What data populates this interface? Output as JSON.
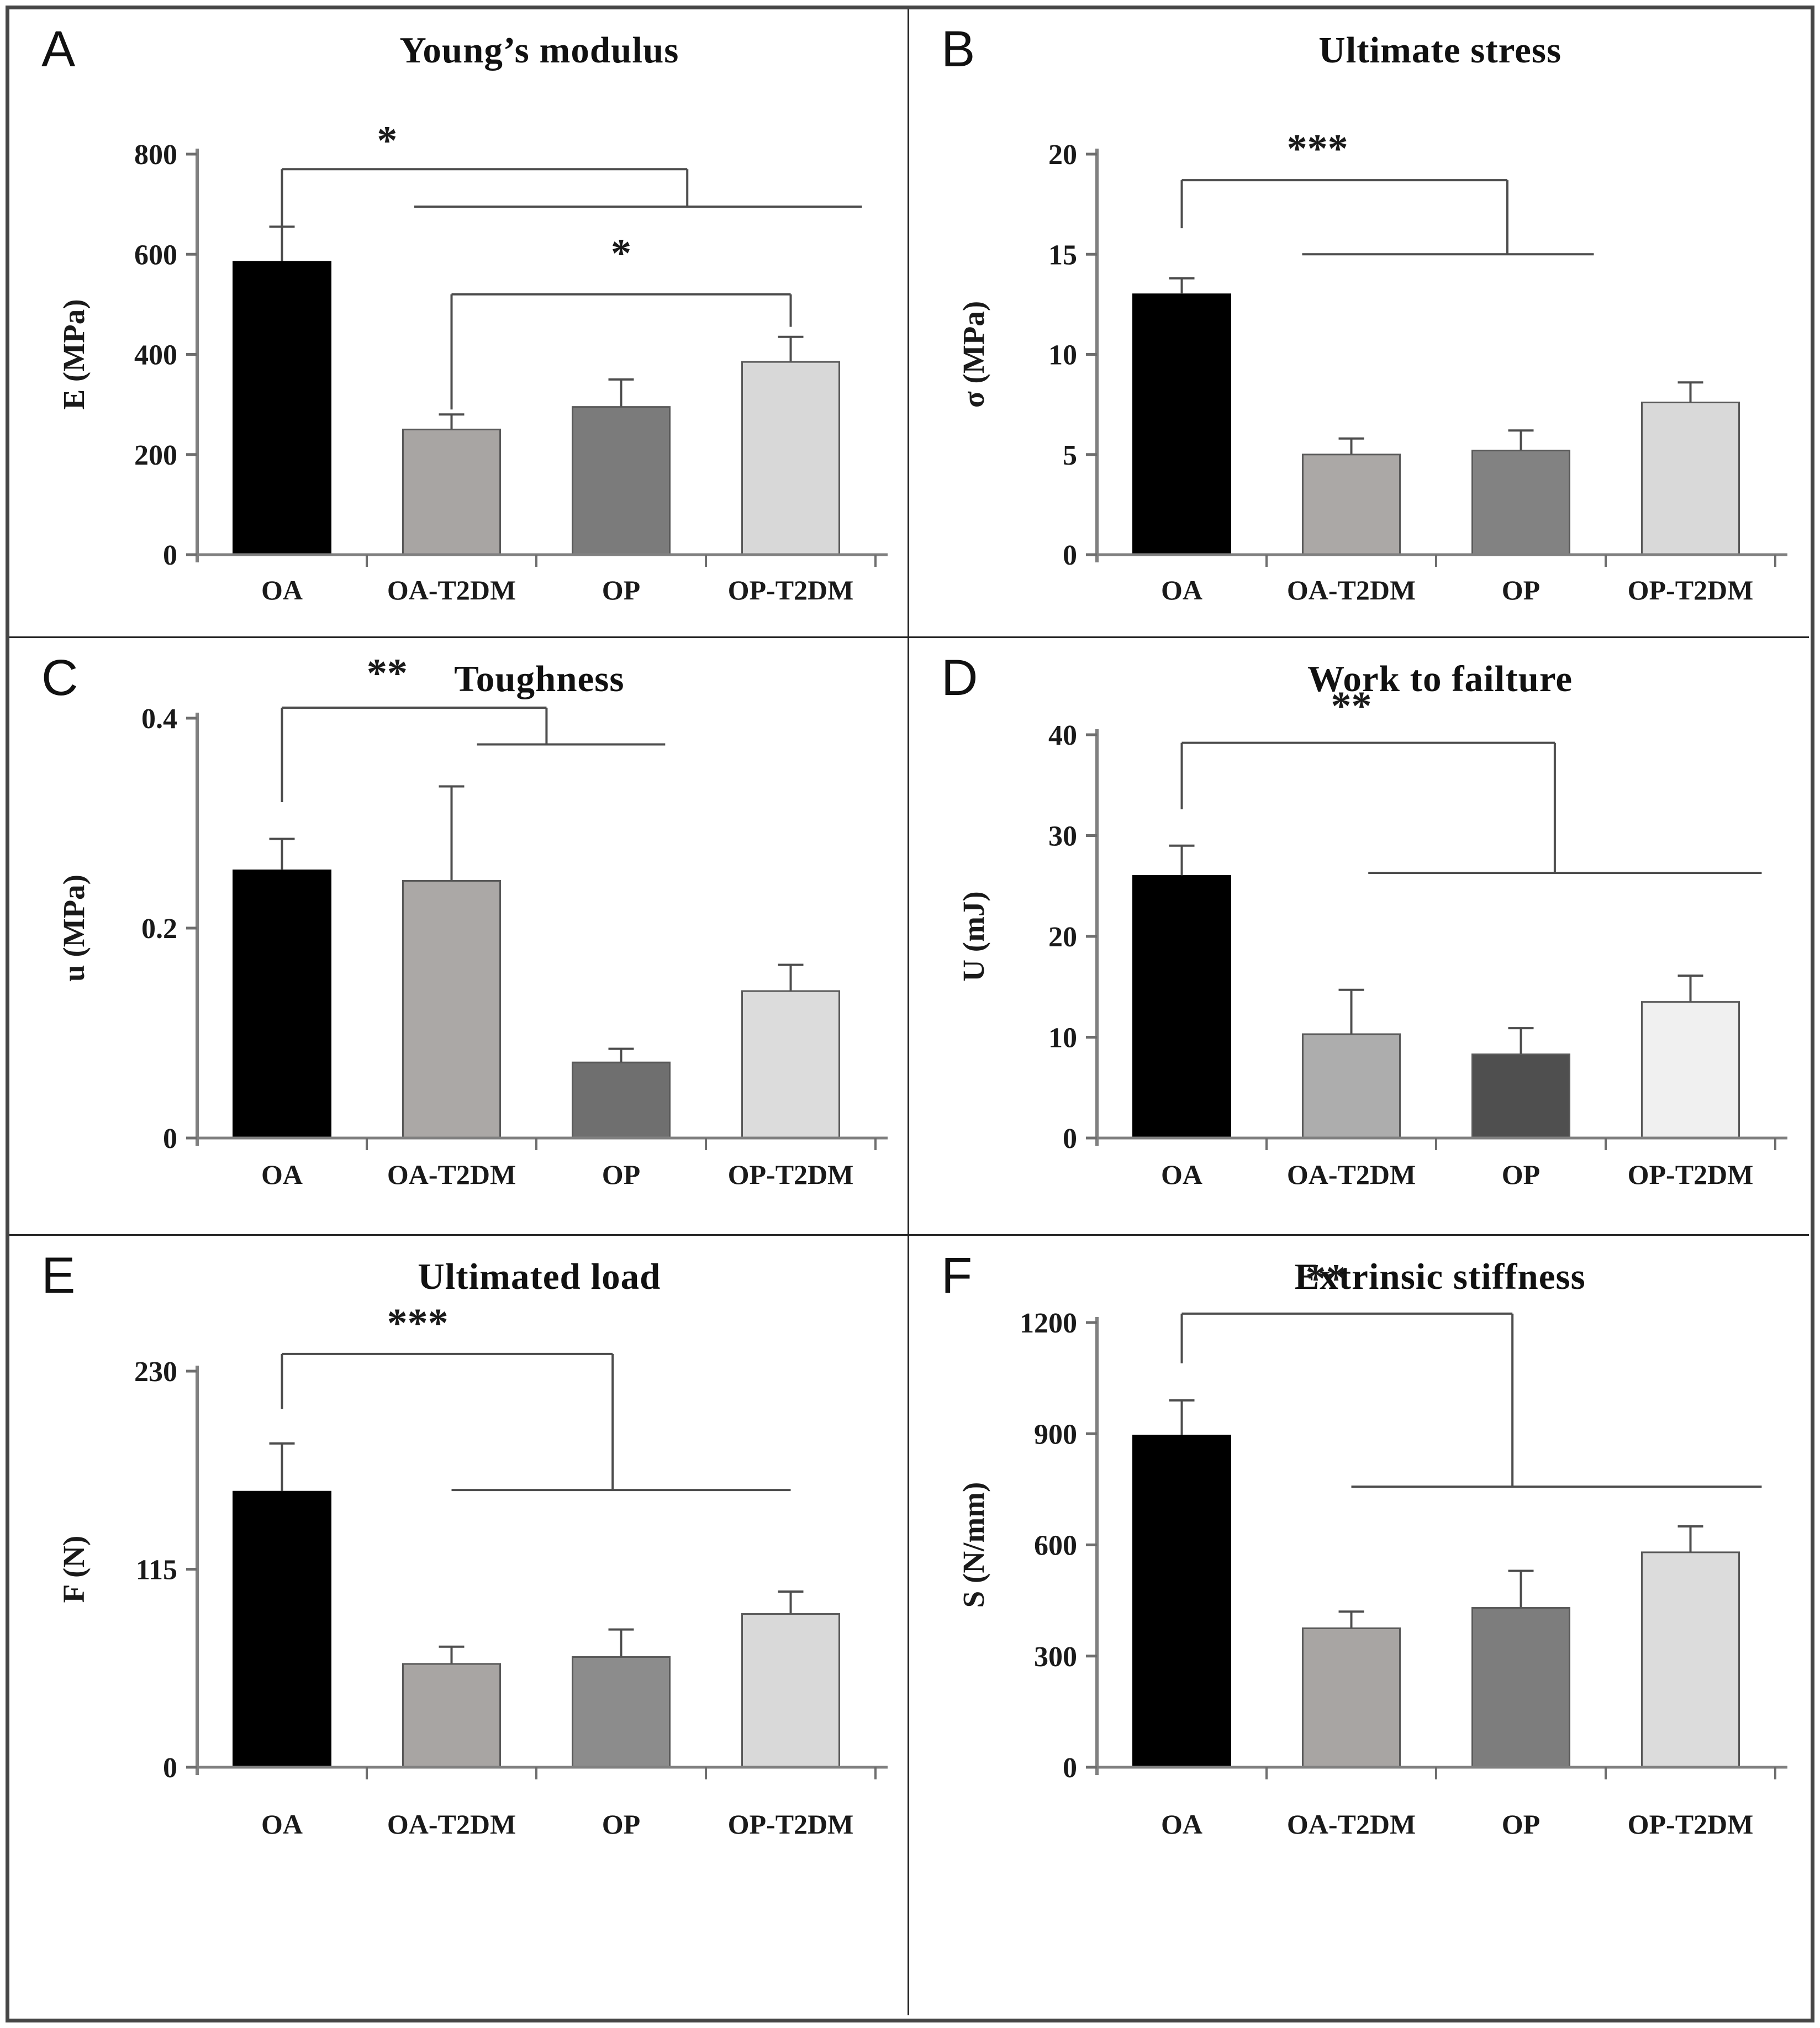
{
  "figure": {
    "border_color": "#464646",
    "divider_color": "#262626",
    "axis_color": "#808080",
    "line_color": "#4d4d4d",
    "text_color": "#1a1a1a"
  },
  "chart_data": [
    {
      "type": "bar",
      "letter": "A",
      "title": "Young’s modulus",
      "ylabel": "E (MPa)",
      "ylim": [
        0,
        800
      ],
      "yticks": [
        0,
        200,
        400,
        600,
        800
      ],
      "ytick_labels": [
        "0",
        "200",
        "400",
        "600",
        "800"
      ],
      "categories": [
        "OA",
        "OA-T2DM",
        "OP",
        "OP-T2DM"
      ],
      "values": [
        585,
        250,
        295,
        385
      ],
      "errors": [
        70,
        30,
        55,
        50
      ],
      "bar_colors": [
        "#000000",
        "#a8a5a3",
        "#7b7b7b",
        "#d8d8d8"
      ],
      "legend": "none",
      "grid": "off",
      "significance": [
        {
          "label": "*",
          "label_u": 0.62,
          "label_v": 800,
          "segments": [
            {
              "u1": 0,
              "v1": 640,
              "u2": 0,
              "v2": 770
            },
            {
              "u1": 0,
              "v1": 770,
              "u2": 2.39,
              "v2": 770
            },
            {
              "u1": 2.39,
              "v1": 695,
              "u2": 2.39,
              "v2": 770
            },
            {
              "u1": 0.78,
              "v1": 695,
              "u2": 3.42,
              "v2": 695
            }
          ]
        },
        {
          "label": "*",
          "label_u": 2.0,
          "label_v": 575,
          "segments": [
            {
              "u1": 1,
              "v1": 290,
              "u2": 1,
              "v2": 520
            },
            {
              "u1": 1,
              "v1": 520,
              "u2": 3,
              "v2": 520
            },
            {
              "u1": 3,
              "v1": 455,
              "u2": 3,
              "v2": 520
            }
          ]
        }
      ]
    },
    {
      "type": "bar",
      "letter": "B",
      "title": "Ultimate stress",
      "ylabel": "σ (MPa)",
      "ylim": [
        0,
        20
      ],
      "yticks": [
        0,
        5,
        10,
        15,
        20
      ],
      "ytick_labels": [
        "0",
        "5",
        "10",
        "15",
        "20"
      ],
      "categories": [
        "OA",
        "OA-T2DM",
        "OP",
        "OP-T2DM"
      ],
      "values": [
        13,
        5,
        5.2,
        7.6
      ],
      "errors": [
        0.8,
        0.8,
        1.0,
        1.0
      ],
      "bar_colors": [
        "#000000",
        "#aba8a6",
        "#828282",
        "#d9d9d9"
      ],
      "legend": "none",
      "grid": "off",
      "significance": [
        {
          "label": "***",
          "label_u": 0.8,
          "label_v": 19.6,
          "segments": [
            {
              "u1": 0,
              "v1": 16.3,
              "u2": 0,
              "v2": 18.7
            },
            {
              "u1": 0,
              "v1": 18.7,
              "u2": 1.92,
              "v2": 18.7
            },
            {
              "u1": 1.92,
              "v1": 15,
              "u2": 1.92,
              "v2": 18.7
            },
            {
              "u1": 0.71,
              "v1": 15,
              "u2": 2.43,
              "v2": 15
            }
          ]
        }
      ]
    },
    {
      "type": "bar",
      "letter": "C",
      "title": "Toughness",
      "ylabel": "u (MPa)",
      "ylim": [
        0,
        0.4
      ],
      "yticks": [
        0,
        0.2,
        0.4
      ],
      "ytick_labels": [
        "0",
        "0.2",
        "0.4"
      ],
      "categories": [
        "OA",
        "OA-T2DM",
        "OP",
        "OP-T2DM"
      ],
      "values": [
        0.255,
        0.245,
        0.072,
        0.14
      ],
      "errors": [
        0.03,
        0.09,
        0.013,
        0.025
      ],
      "bar_colors": [
        "#000000",
        "#aba8a6",
        "#6f6f6f",
        "#dcdcdc"
      ],
      "legend": "none",
      "grid": "off",
      "significance": [
        {
          "label": "**",
          "label_u": 0.62,
          "label_v": 0.43,
          "segments": [
            {
              "u1": 0,
              "v1": 0.32,
              "u2": 0,
              "v2": 0.41
            },
            {
              "u1": 0,
              "v1": 0.41,
              "u2": 1.56,
              "v2": 0.41
            },
            {
              "u1": 1.56,
              "v1": 0.375,
              "u2": 1.56,
              "v2": 0.41
            },
            {
              "u1": 1.15,
              "v1": 0.375,
              "u2": 2.26,
              "v2": 0.375
            }
          ]
        }
      ]
    },
    {
      "type": "bar",
      "letter": "D",
      "title": "Work to failture",
      "ylabel": "U (mJ)",
      "ylim": [
        0,
        40
      ],
      "yticks": [
        0,
        10,
        20,
        30,
        40
      ],
      "ytick_labels": [
        "0",
        "10",
        "20",
        "30",
        "40"
      ],
      "categories": [
        "OA",
        "OA-T2DM",
        "OP",
        "OP-T2DM"
      ],
      "values": [
        26,
        10.3,
        8.3,
        13.5
      ],
      "errors": [
        3,
        4.4,
        2.6,
        2.6
      ],
      "bar_colors": [
        "#000000",
        "#adadad",
        "#4f4f4f",
        "#f0f0f0"
      ],
      "legend": "none",
      "grid": "off",
      "significance": [
        {
          "label": "**",
          "label_u": 1.0,
          "label_v": 41.5,
          "segments": [
            {
              "u1": 0,
              "v1": 32.6,
              "u2": 0,
              "v2": 39.2
            },
            {
              "u1": 0,
              "v1": 39.2,
              "u2": 2.2,
              "v2": 39.2
            },
            {
              "u1": 2.2,
              "v1": 26.3,
              "u2": 2.2,
              "v2": 39.2
            },
            {
              "u1": 1.1,
              "v1": 26.3,
              "u2": 3.42,
              "v2": 26.3
            }
          ]
        }
      ]
    },
    {
      "type": "bar",
      "letter": "E",
      "title": "Ultimated load",
      "ylabel": "F (N)",
      "ylim": [
        0,
        230
      ],
      "yticks": [
        0,
        115,
        230
      ],
      "ytick_labels": [
        "0",
        "115",
        "230"
      ],
      "categories": [
        "OA",
        "OA-T2DM",
        "OP",
        "OP-T2DM"
      ],
      "values": [
        160,
        60,
        64,
        89
      ],
      "errors": [
        28,
        10,
        16,
        13
      ],
      "bar_colors": [
        "#000000",
        "#a8a5a3",
        "#8c8c8c",
        "#d9d9d9"
      ],
      "legend": "none",
      "grid": "off",
      "significance": [
        {
          "label": "***",
          "label_u": 0.8,
          "label_v": 250,
          "segments": [
            {
              "u1": 0,
              "v1": 208,
              "u2": 0,
              "v2": 240
            },
            {
              "u1": 0,
              "v1": 240,
              "u2": 1.95,
              "v2": 240
            },
            {
              "u1": 1.95,
              "v1": 161,
              "u2": 1.95,
              "v2": 240
            },
            {
              "u1": 1,
              "v1": 161,
              "u2": 3,
              "v2": 161
            }
          ]
        }
      ]
    },
    {
      "type": "bar",
      "letter": "F",
      "title": "Extrinsic stiffness",
      "ylabel": "S (N/mm)",
      "ylim": [
        0,
        1200
      ],
      "yticks": [
        0,
        300,
        600,
        900,
        1200
      ],
      "ytick_labels": [
        "0",
        "300",
        "600",
        "900",
        "1200"
      ],
      "categories": [
        "OA",
        "OA-T2DM",
        "OP",
        "OP-T2DM"
      ],
      "values": [
        895,
        375,
        430,
        580
      ],
      "errors": [
        95,
        45,
        100,
        70
      ],
      "bar_colors": [
        "#000000",
        "#a8a5a3",
        "#7d7d7d",
        "#dcdcdc"
      ],
      "legend": "none",
      "grid": "off",
      "significance": [
        {
          "label": "**",
          "label_u": 0.85,
          "label_v": 1282,
          "segments": [
            {
              "u1": 0,
              "v1": 1090,
              "u2": 0,
              "v2": 1224
            },
            {
              "u1": 0,
              "v1": 1224,
              "u2": 1.95,
              "v2": 1224
            },
            {
              "u1": 1.95,
              "v1": 757,
              "u2": 1.95,
              "v2": 1224
            },
            {
              "u1": 1,
              "v1": 757,
              "u2": 3.42,
              "v2": 757
            }
          ]
        }
      ]
    }
  ]
}
